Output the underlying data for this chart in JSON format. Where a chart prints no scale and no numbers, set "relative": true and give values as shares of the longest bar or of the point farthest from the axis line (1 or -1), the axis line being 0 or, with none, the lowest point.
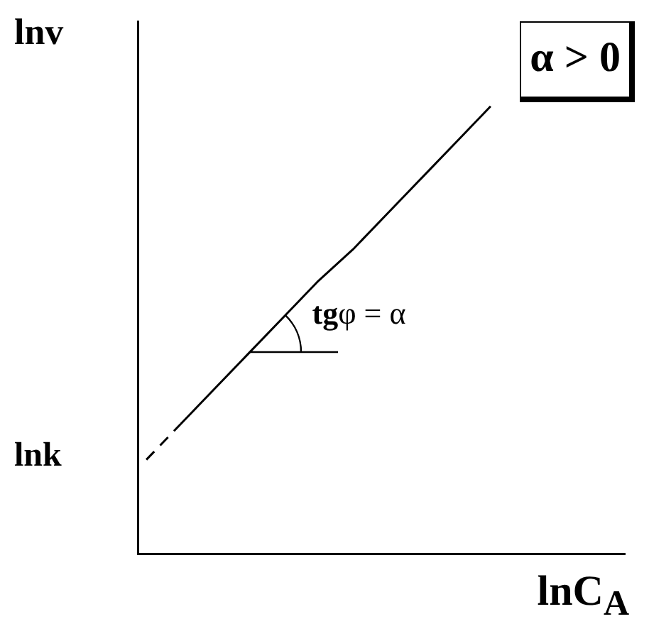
{
  "chart_data": {
    "type": "line",
    "relative": true,
    "xlabel": "lnC$_{A}$",
    "ylabel": "lnv",
    "categories": [
      null,
      null,
      null,
      null,
      null,
      null,
      null,
      null,
      null,
      null,
      null
    ],
    "series": [
      {
        "color": "#000000",
        "line_style": "dashed",
        "values": [
          0.21,
          0.29,
          null,
          null,
          null,
          null,
          null,
          null,
          null,
          null,
          null
        ]
      },
      {
        "color": "#000000",
        "line_style": "solid",
        "values": [
          null,
          0.29,
          0.37,
          0.45,
          0.53,
          0.61,
          0.68,
          0.76,
          0.84,
          0.92,
          1.0
        ]
      }
    ],
    "annotations": [
      "lnk",
      "tgφ = α",
      "α > 0"
    ],
    "grid": false,
    "legend": false,
    "marker": "none"
  }
}
